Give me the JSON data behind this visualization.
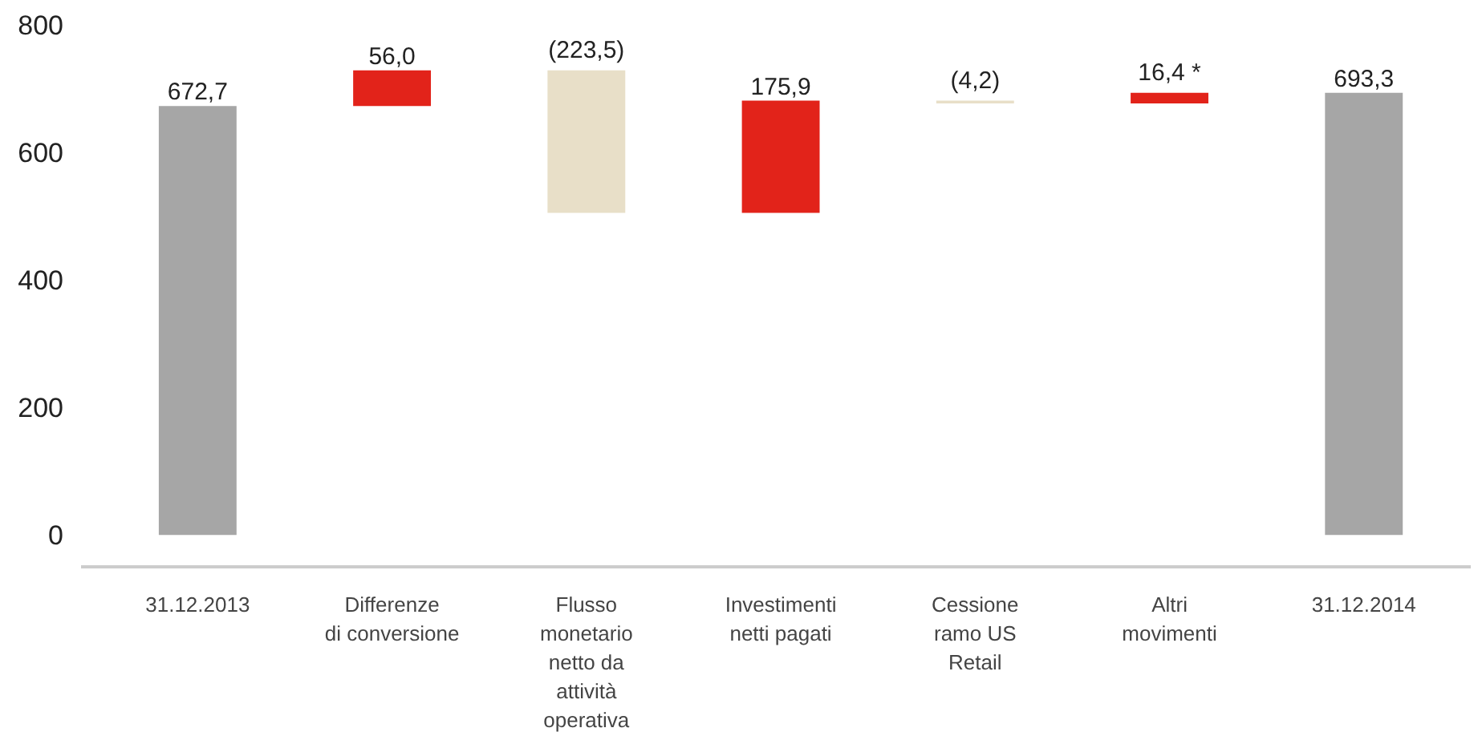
{
  "chart_data": {
    "type": "bar",
    "categories": [
      "31.12.2013",
      "Differenze\ndi conversione",
      "Flusso\nmonetario\nnetto da\nattività\noperativa",
      "Investimenti\nnetti pagati",
      "Cessione\nramo US\nRetail",
      "Altri\nmovimenti",
      "31.12.2014"
    ],
    "values": [
      672.7,
      56.0,
      -223.5,
      175.9,
      -4.2,
      16.4,
      693.3
    ],
    "base": [
      0,
      672.7,
      728.7,
      505.2,
      681.1,
      676.9,
      0
    ],
    "colors": [
      "#a6a6a6",
      "#e2231a",
      "#e8dfc8",
      "#e2231a",
      "#e8dfc8",
      "#e2231a",
      "#a6a6a6"
    ],
    "value_labels": [
      "672,7",
      "56,0",
      "(223,5)",
      "175,9",
      "(4,2)",
      "16,4 *",
      "693,3"
    ],
    "ylim": [
      -50,
      800
    ],
    "yticks": [
      0,
      200,
      400,
      600,
      800
    ],
    "grid": false
  }
}
